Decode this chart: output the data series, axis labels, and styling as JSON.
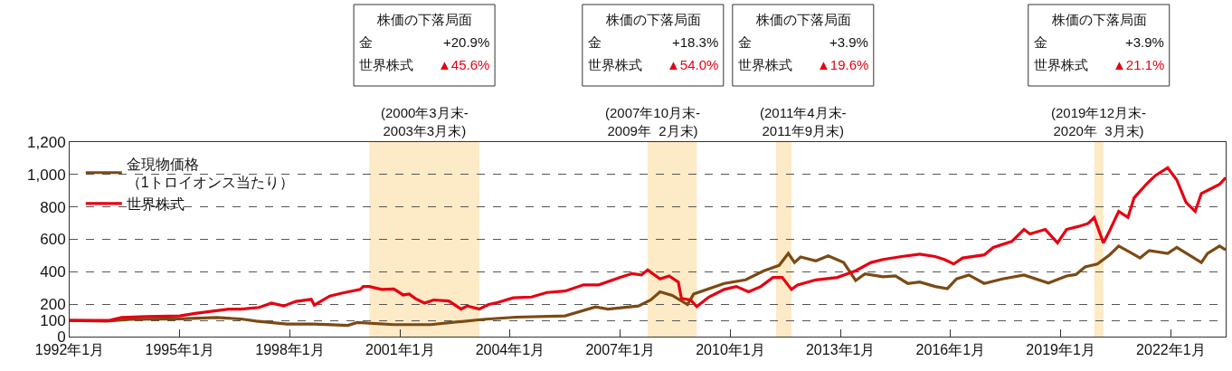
{
  "chart_data": {
    "type": "line",
    "xlim": [
      "1992-01",
      "2023-07"
    ],
    "ylim": [
      0,
      1200
    ],
    "xticks": [
      {
        "value": "1992-01",
        "label": "1992年1月"
      },
      {
        "value": "1995-01",
        "label": "1995年1月"
      },
      {
        "value": "1998-01",
        "label": "1998年1月"
      },
      {
        "value": "2001-01",
        "label": "2001年1月"
      },
      {
        "value": "2004-01",
        "label": "2004年1月"
      },
      {
        "value": "2007-01",
        "label": "2007年1月"
      },
      {
        "value": "2010-01",
        "label": "2010年1月"
      },
      {
        "value": "2013-01",
        "label": "2013年1月"
      },
      {
        "value": "2016-01",
        "label": "2016年1月"
      },
      {
        "value": "2019-01",
        "label": "2019年1月"
      },
      {
        "value": "2022-01",
        "label": "2022年1月"
      }
    ],
    "yticks": [
      0,
      100,
      200,
      400,
      600,
      800,
      {
        "value": 1000,
        "label": "1,000"
      },
      {
        "value": 1200,
        "label": "1,200"
      }
    ],
    "grid": "y",
    "legend": "top left",
    "marker": "none",
    "line_style": "solid",
    "series": [
      {
        "name": "金現物価格（1トロイオンス当たり）",
        "color": "#7b4a14",
        "x": [
          "1992-01",
          "1993-01",
          "1993-09",
          "1995-01",
          "1996-01",
          "1996-09",
          "1997-02",
          "1997-12",
          "1998-09",
          "1999-08",
          "1999-11",
          "2000-11",
          "2001-11",
          "2002-08",
          "2003-04",
          "2004-03",
          "2005-07",
          "2006-05",
          "2006-09",
          "2007-07",
          "2007-11",
          "2008-02",
          "2008-06",
          "2008-11",
          "2009-01",
          "2009-11",
          "2010-06",
          "2010-12",
          "2011-05",
          "2011-08",
          "2011-10",
          "2011-12",
          "2012-05",
          "2012-09",
          "2013-02",
          "2013-06",
          "2013-09",
          "2014-03",
          "2014-07",
          "2014-11",
          "2015-03",
          "2015-08",
          "2015-12",
          "2016-03",
          "2016-07",
          "2016-12",
          "2017-06",
          "2018-01",
          "2018-09",
          "2019-03",
          "2019-06",
          "2019-09",
          "2020-01",
          "2020-05",
          "2020-08",
          "2020-12",
          "2021-03",
          "2021-06",
          "2021-12",
          "2022-03",
          "2022-11",
          "2023-01",
          "2023-05",
          "2023-07"
        ],
        "values": [
          100,
          96,
          106,
          109,
          118,
          109,
          96,
          78,
          78,
          69,
          87,
          74,
          74,
          91,
          106,
          120,
          128,
          183,
          170,
          189,
          226,
          276,
          254,
          198,
          263,
          328,
          350,
          406,
          439,
          513,
          457,
          491,
          467,
          498,
          457,
          346,
          387,
          369,
          374,
          328,
          337,
          309,
          296,
          356,
          380,
          328,
          356,
          380,
          331,
          374,
          383,
          430,
          448,
          504,
          559,
          517,
          485,
          531,
          513,
          550,
          457,
          513,
          559,
          535
        ]
      },
      {
        "name": "世界株式",
        "color": "#e60012",
        "x": [
          "1992-01",
          "1993-02",
          "1993-06",
          "1994-02",
          "1995-01",
          "1995-06",
          "1996-05",
          "1996-09",
          "1997-03",
          "1997-07",
          "1997-11",
          "1998-03",
          "1998-08",
          "1998-09",
          "1999-02",
          "1999-06",
          "1999-12",
          "2000-01",
          "2000-03",
          "2000-07",
          "2000-11",
          "2001-02",
          "2001-04",
          "2001-06",
          "2001-09",
          "2001-12",
          "2002-05",
          "2002-09",
          "2002-11",
          "2003-03",
          "2003-06",
          "2003-09",
          "2004-02",
          "2004-08",
          "2005-01",
          "2005-07",
          "2006-01",
          "2006-06",
          "2007-01",
          "2007-05",
          "2007-08",
          "2007-10",
          "2008-02",
          "2008-05",
          "2008-08",
          "2008-09",
          "2008-12",
          "2009-02",
          "2009-06",
          "2009-11",
          "2010-03",
          "2010-07",
          "2010-11",
          "2011-03",
          "2011-06",
          "2011-09",
          "2011-11",
          "2012-05",
          "2012-12",
          "2013-06",
          "2013-11",
          "2014-03",
          "2014-09",
          "2015-03",
          "2015-08",
          "2015-11",
          "2016-02",
          "2016-05",
          "2016-12",
          "2017-03",
          "2017-09",
          "2018-01",
          "2018-03",
          "2018-08",
          "2018-12",
          "2019-03",
          "2019-07",
          "2019-10",
          "2019-12",
          "2020-03",
          "2020-05",
          "2020-08",
          "2020-11",
          "2021-01",
          "2021-05",
          "2021-08",
          "2021-12",
          "2022-03",
          "2022-06",
          "2022-09",
          "2022-11",
          "2023-02",
          "2023-05",
          "2023-07"
        ],
        "values": [
          100,
          100,
          118,
          124,
          128,
          143,
          170,
          170,
          180,
          207,
          189,
          217,
          230,
          194,
          250,
          268,
          291,
          309,
          309,
          291,
          294,
          257,
          263,
          235,
          207,
          226,
          220,
          170,
          189,
          170,
          198,
          211,
          239,
          244,
          272,
          281,
          319,
          319,
          365,
          389,
          380,
          411,
          356,
          374,
          337,
          235,
          226,
          185,
          244,
          291,
          309,
          276,
          309,
          365,
          365,
          291,
          319,
          350,
          365,
          406,
          457,
          476,
          494,
          509,
          494,
          476,
          448,
          485,
          504,
          550,
          587,
          661,
          633,
          661,
          578,
          661,
          680,
          698,
          735,
          578,
          652,
          772,
          735,
          856,
          939,
          994,
          1041,
          967,
          828,
          772,
          883,
          911,
          939,
          980
        ]
      }
    ],
    "bands": [
      {
        "axis": "x",
        "from": "2000-03",
        "to": "2003-03",
        "label": "(2000年3月末-\n2003年3月末)",
        "color": "#fdeac6"
      },
      {
        "axis": "x",
        "from": "2007-10",
        "to": "2009-02",
        "label": "(2007年10月末-\n2009年  2月末)",
        "color": "#fdeac6"
      },
      {
        "axis": "x",
        "from": "2011-04",
        "to": "2011-09",
        "label": "(2011年4月末-\n2011年9月末)",
        "color": "#fdeac6"
      },
      {
        "axis": "x",
        "from": "2019-12",
        "to": "2020-03",
        "label": "(2019年12月末-\n2020年  3月末)",
        "color": "#fdeac6"
      }
    ],
    "annotations": [
      "株価の下落局面",
      "金 +20.9%",
      "世界株式 ▲45.6%",
      "株価の下落局面",
      "金 +18.3%",
      "世界株式 ▲54.0%",
      "株価の下落局面",
      "金 +3.9%",
      "世界株式 ▲19.6%",
      "株価の下落局面",
      "金 +3.9%",
      "世界株式 ▲21.1%"
    ]
  }
}
